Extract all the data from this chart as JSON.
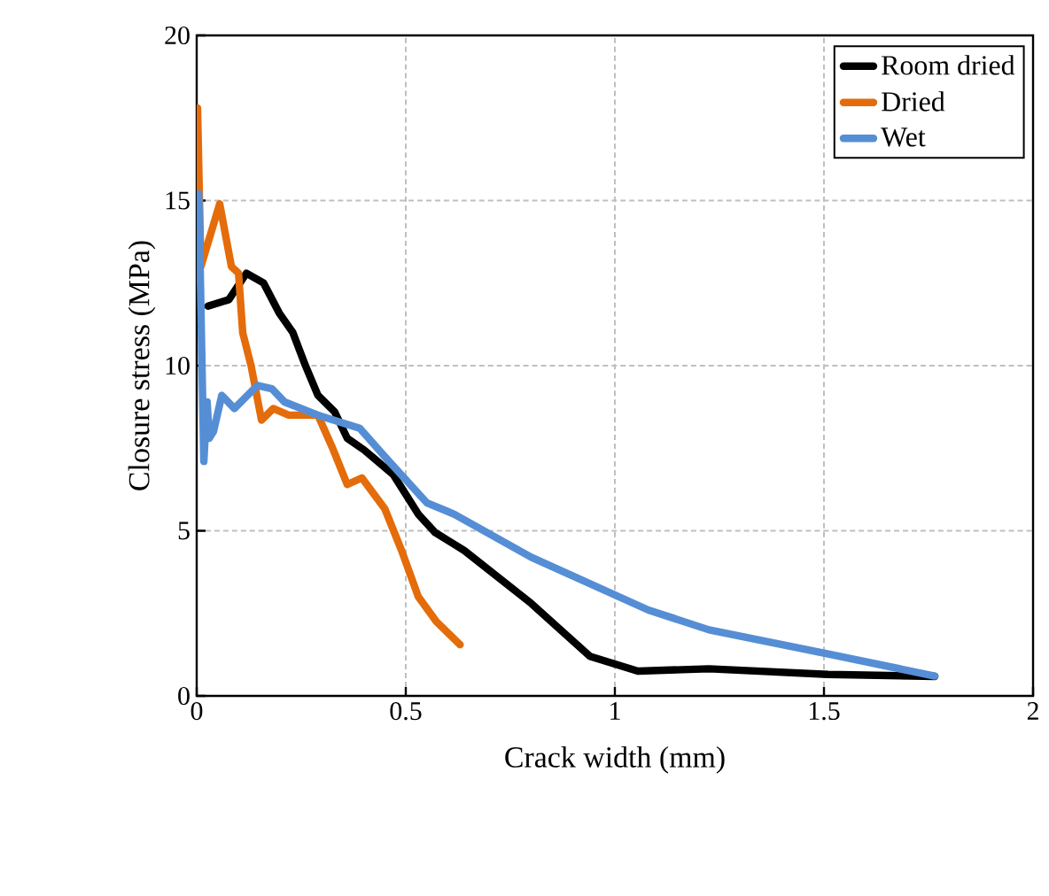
{
  "chart_data": {
    "type": "line",
    "xlabel": "Crack width (mm)",
    "ylabel": "Closure stress (MPa)",
    "xlim": [
      0,
      2
    ],
    "ylim": [
      0,
      20
    ],
    "xticks": [
      0,
      0.5,
      1,
      1.5,
      2
    ],
    "yticks": [
      0,
      5,
      10,
      15,
      20
    ],
    "grid": true,
    "legend": "top right",
    "line_style": "solid",
    "marker": "none",
    "series": [
      {
        "name": "Room dried",
        "color": "#000000",
        "x": [
          0.027,
          0.077,
          0.119,
          0.16,
          0.197,
          0.23,
          0.26,
          0.29,
          0.33,
          0.36,
          0.4,
          0.47,
          0.53,
          0.57,
          0.64,
          0.8,
          0.94,
          1.055,
          1.225,
          1.51,
          1.765
        ],
        "values": [
          11.8,
          12.0,
          12.8,
          12.5,
          11.6,
          11.0,
          10.0,
          9.1,
          8.6,
          7.8,
          7.45,
          6.7,
          5.5,
          4.95,
          4.4,
          2.8,
          1.2,
          0.75,
          0.82,
          0.65,
          0.59
        ]
      },
      {
        "name": "Dried",
        "color": "#e46c0a",
        "x": [
          0.002,
          0.01,
          0.055,
          0.083,
          0.1,
          0.11,
          0.13,
          0.155,
          0.183,
          0.22,
          0.29,
          0.325,
          0.36,
          0.395,
          0.45,
          0.49,
          0.53,
          0.573,
          0.63
        ],
        "values": [
          17.8,
          13.0,
          14.9,
          13.0,
          12.8,
          11.0,
          10.0,
          8.35,
          8.7,
          8.5,
          8.5,
          7.5,
          6.4,
          6.6,
          5.66,
          4.4,
          3.0,
          2.25,
          1.55
        ]
      },
      {
        "name": "Wet",
        "color": "#558ed5",
        "x": [
          0.005,
          0.017,
          0.025,
          0.03,
          0.04,
          0.06,
          0.09,
          0.145,
          0.18,
          0.21,
          0.29,
          0.39,
          0.46,
          0.55,
          0.616,
          0.8,
          1.08,
          1.225,
          1.51,
          1.765
        ],
        "values": [
          15.2,
          7.1,
          8.9,
          7.8,
          8.0,
          9.1,
          8.7,
          9.4,
          9.3,
          8.9,
          8.5,
          8.1,
          7.1,
          5.85,
          5.5,
          4.2,
          2.6,
          2.0,
          1.27,
          0.6
        ]
      }
    ]
  }
}
